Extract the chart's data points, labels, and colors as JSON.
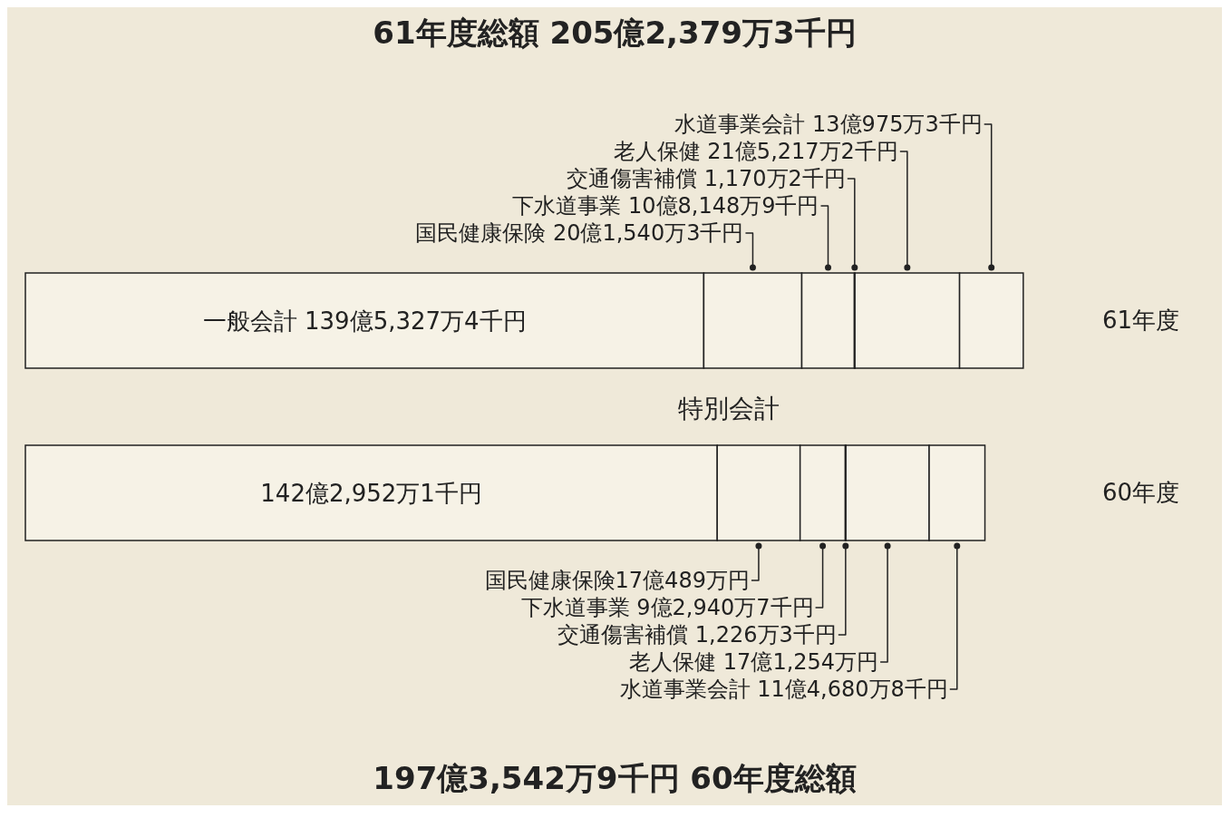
{
  "chart_data": {
    "type": "bar",
    "orientation": "horizontal",
    "stacked": true,
    "title": "61年度総額 205億2,379万3千円",
    "annotations": [
      "特別会計",
      "197億3,542万9千円 60年度総額"
    ],
    "categories": [
      "61年度",
      "60年度"
    ],
    "series": [
      {
        "color": "#f6f2e6",
        "values": [
          139.53274,
          142.29521
        ],
        "value_labels": [
          "一般会計 139億5,327万4千円",
          "142億2,952万1千円"
        ]
      },
      {
        "color": "#f6f2e6",
        "values": [
          20.15403,
          17.0489
        ],
        "value_labels": [
          "国民健康保険 20億1,540万3千円",
          "国民健康保険17億489万円"
        ]
      },
      {
        "color": "#f6f2e6",
        "values": [
          10.81489,
          9.29407
        ],
        "value_labels": [
          "下水道事業 10億8,148万9千円",
          "下水道事業 9億2,940万7千円"
        ]
      },
      {
        "color": "#f6f2e6",
        "values": [
          0.11702,
          0.12263
        ],
        "value_labels": [
          "交通傷害補償 1,170万2千円",
          "交通傷害補償 1,226万3千円"
        ]
      },
      {
        "color": "#f6f2e6",
        "values": [
          21.52172,
          17.1254
        ],
        "value_labels": [
          "老人保健 21億5,217万2千円",
          "老人保健 17億1,254万円"
        ]
      },
      {
        "color": "#f6f2e6",
        "values": [
          13.09753,
          11.46808
        ],
        "value_labels": [
          "水道事業会計 13億975万3千円",
          "水道事業会計 11億4,680万8千円"
        ]
      }
    ],
    "legend": false
  }
}
